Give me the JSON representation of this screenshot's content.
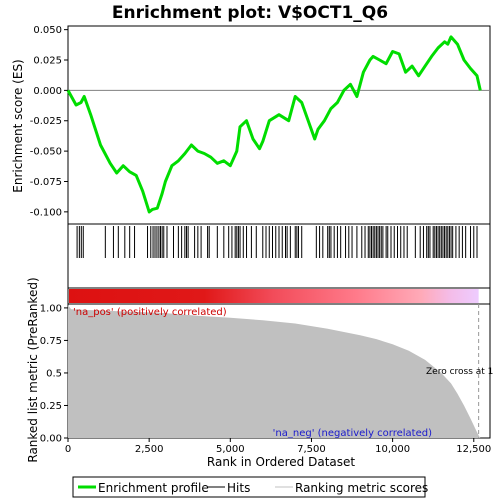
{
  "title": "Enrichment plot: V$OCT1_Q6",
  "colors": {
    "enrichment_line": "#00dd00",
    "hits": "#000000",
    "metric_fill": "#c0c0c0",
    "pos_label": "#cc0000",
    "neg_label": "#1a1acc",
    "bar_red": "#dd1111",
    "bar_pink": "#ffaaaa",
    "bar_light": "#eeccff"
  },
  "chart_data": [
    {
      "type": "line",
      "panel": "enrichment-score",
      "ylabel": "Enrichment score (ES)",
      "xlim": [
        0,
        13000
      ],
      "ylim": [
        -0.11,
        0.053
      ],
      "y_ticks": [
        0.05,
        0.025,
        0.0,
        -0.025,
        -0.05,
        -0.075,
        -0.1
      ],
      "y_tick_labels": [
        "0.050",
        "0.025",
        "0.000",
        "-0.025",
        "-0.050",
        "-0.075",
        "-0.100"
      ],
      "series": [
        {
          "x": [
            0,
            250,
            400,
            500,
            700,
            1000,
            1300,
            1500,
            1700,
            1900,
            2100,
            2300,
            2500,
            2600,
            2750,
            2900,
            3000,
            3200,
            3400,
            3600,
            3800,
            4000,
            4200,
            4400,
            4600,
            4800,
            5000,
            5200,
            5300,
            5500,
            5700,
            5900,
            6000,
            6200,
            6500,
            6800,
            7000,
            7200,
            7400,
            7600,
            7700,
            7900,
            8100,
            8300,
            8500,
            8700,
            8900,
            9100,
            9300,
            9400,
            9600,
            9800,
            10000,
            10200,
            10400,
            10600,
            10800,
            11000,
            11200,
            11400,
            11600,
            11700,
            11800,
            12000,
            12200,
            12400,
            12600,
            12700
          ],
          "y": [
            0.0,
            -0.012,
            -0.01,
            -0.005,
            -0.02,
            -0.045,
            -0.06,
            -0.068,
            -0.062,
            -0.067,
            -0.07,
            -0.083,
            -0.1,
            -0.098,
            -0.097,
            -0.085,
            -0.075,
            -0.062,
            -0.058,
            -0.052,
            -0.045,
            -0.05,
            -0.052,
            -0.055,
            -0.06,
            -0.058,
            -0.062,
            -0.05,
            -0.03,
            -0.025,
            -0.04,
            -0.048,
            -0.042,
            -0.025,
            -0.02,
            -0.025,
            -0.005,
            -0.01,
            -0.025,
            -0.04,
            -0.032,
            -0.025,
            -0.015,
            -0.01,
            0.0,
            0.005,
            -0.005,
            0.015,
            0.025,
            0.028,
            0.025,
            0.022,
            0.032,
            0.03,
            0.015,
            0.02,
            0.012,
            0.02,
            0.028,
            0.035,
            0.04,
            0.038,
            0.044,
            0.038,
            0.025,
            0.018,
            0.012,
            0.0
          ]
        }
      ]
    },
    {
      "type": "scatter",
      "panel": "hits",
      "x": [
        280,
        350,
        410,
        470,
        1150,
        1400,
        1550,
        1750,
        1900,
        2050,
        2450,
        2550,
        2620,
        2680,
        2740,
        2800,
        2850,
        2900,
        2950,
        3050,
        3250,
        3400,
        3500,
        3600,
        3650,
        3700,
        3900,
        4000,
        4100,
        4300,
        4350,
        4600,
        4800,
        4950,
        5050,
        5150,
        5200,
        5250,
        5300,
        5400,
        5500,
        5650,
        5800,
        6000,
        6100,
        6200,
        6300,
        6400,
        6500,
        6600,
        6700,
        6750,
        6850,
        7000,
        7050,
        7100,
        7200,
        7650,
        7750,
        7850,
        8000,
        8050,
        8100,
        8200,
        8300,
        8400,
        8550,
        8650,
        8750,
        8900,
        9050,
        9150,
        9250,
        9300,
        9350,
        9400,
        9450,
        9500,
        9550,
        9600,
        9650,
        9700,
        9800,
        9850,
        9950,
        10050,
        10150,
        10250,
        10350,
        10450,
        10700,
        10850,
        10950,
        11050,
        11100,
        11150,
        11250,
        11300,
        11350,
        11400,
        11450,
        11500,
        11550,
        11600,
        11650,
        11700,
        11750,
        11800,
        11850,
        11950,
        12050,
        12150,
        12250,
        12400,
        12500,
        12600
      ]
    },
    {
      "type": "area",
      "panel": "ranked-metric",
      "xlabel": "Rank in Ordered Dataset",
      "ylabel": "Ranked list metric (PreRanked)",
      "xlim": [
        0,
        13000
      ],
      "ylim": [
        0,
        1.03
      ],
      "x_ticks": [
        0,
        2500,
        5000,
        7500,
        10000,
        12500
      ],
      "x_tick_labels": [
        "0",
        "2,500",
        "5,000",
        "7,500",
        "10,000",
        "12,500"
      ],
      "y_ticks": [
        1.0,
        0.75,
        0.5,
        0.25,
        0.0
      ],
      "y_tick_labels": [
        "1.00",
        "0.75",
        "0.5",
        "0.25",
        "0.00"
      ],
      "series": [
        {
          "x": [
            0,
            100,
            500,
            1000,
            2000,
            3000,
            4000,
            5000,
            6000,
            7000,
            8000,
            9000,
            9500,
            10000,
            10500,
            11000,
            11500,
            11800,
            12000,
            12200,
            12400,
            12550,
            12650,
            12700
          ],
          "y": [
            1.02,
            0.99,
            0.985,
            0.98,
            0.97,
            0.96,
            0.94,
            0.925,
            0.905,
            0.88,
            0.84,
            0.79,
            0.76,
            0.72,
            0.67,
            0.6,
            0.5,
            0.42,
            0.34,
            0.25,
            0.15,
            0.07,
            0.02,
            0.0
          ]
        }
      ],
      "annotations": {
        "pos": "'na_pos' (positively correlated)",
        "neg": "'na_neg' (negatively correlated)",
        "zero_cross": "Zero cross at 1",
        "zero_cross_x": 12650
      }
    }
  ],
  "legend": {
    "items": [
      {
        "label": "Enrichment profile"
      },
      {
        "label": "Hits"
      },
      {
        "label": "Ranking metric scores"
      }
    ]
  }
}
